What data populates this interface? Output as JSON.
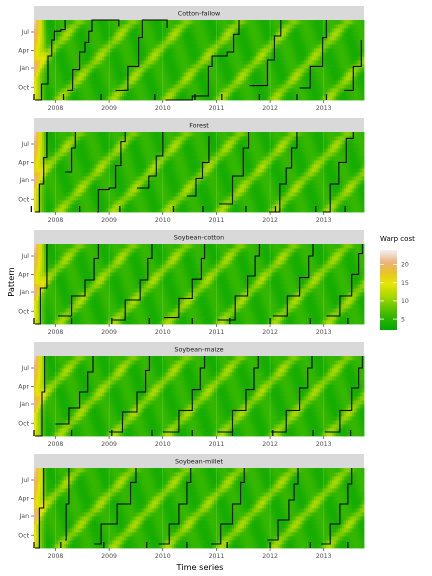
{
  "chart_data": {
    "type": "heatmap",
    "xlabel": "Time series",
    "ylabel": "Pattern",
    "x_tick_labels": [
      "2008",
      "2009",
      "2010",
      "2011",
      "2012",
      "2013"
    ],
    "y_tick_labels": [
      "Jul",
      "Apr",
      "Jan",
      "Oct"
    ],
    "legend": {
      "title": "Warp cost",
      "ticks": [
        5,
        10,
        15,
        20
      ],
      "range": [
        2,
        24
      ],
      "placement": "right",
      "colors": [
        "#00a600",
        "#63c600",
        "#e6e600",
        "#eab64e",
        "#edb48e",
        "#f2f2f2"
      ]
    },
    "panels": [
      {
        "label": "Cotton-fallow",
        "alignment_starts": [
          2007.6,
          2008.15,
          2008.85,
          2009.85,
          2010.6,
          2011.1,
          2011.8,
          2012.5,
          2013.05
        ],
        "alignment_path": [
          [
            2007.62,
            0.0
          ],
          [
            2007.74,
            0.2
          ],
          [
            2007.86,
            0.55
          ],
          [
            2007.93,
            0.75
          ],
          [
            2007.98,
            0.86
          ],
          [
            2008.1,
            0.88
          ],
          [
            2008.18,
            1.0
          ],
          [
            2008.22,
            0.12
          ],
          [
            2008.32,
            0.38
          ],
          [
            2008.45,
            0.6
          ],
          [
            2008.55,
            0.72
          ],
          [
            2008.62,
            0.86
          ],
          [
            2008.68,
            1.0
          ],
          [
            2009.18,
            0.92
          ],
          [
            2009.12,
            0.12
          ],
          [
            2009.35,
            0.42
          ],
          [
            2009.55,
            0.78
          ],
          [
            2009.62,
            1.0
          ],
          [
            2010.08,
            0.9
          ],
          [
            2010.05,
            0.0
          ],
          [
            2010.55,
            0.05
          ],
          [
            2010.85,
            0.42
          ],
          [
            2010.92,
            0.55
          ],
          [
            2011.2,
            0.6
          ],
          [
            2011.32,
            0.82
          ],
          [
            2011.42,
            1.0
          ],
          [
            2011.62,
            0.18
          ],
          [
            2011.95,
            0.5
          ],
          [
            2012.08,
            0.8
          ],
          [
            2012.2,
            1.0
          ],
          [
            2012.55,
            0.15
          ],
          [
            2012.75,
            0.42
          ],
          [
            2012.98,
            0.78
          ],
          [
            2013.05,
            1.0
          ],
          [
            2013.38,
            0.12
          ],
          [
            2013.55,
            0.42
          ],
          [
            2013.7,
            0.75
          ]
        ]
      },
      {
        "label": "Forest",
        "alignment_starts": [
          2007.55,
          2008.45,
          2009.2,
          2010.2,
          2010.75,
          2011.55,
          2012.1,
          2012.85,
          2013.4
        ],
        "alignment_path": [
          [
            2007.62,
            0.0
          ],
          [
            2007.7,
            0.35
          ],
          [
            2007.78,
            0.68
          ],
          [
            2007.84,
            1.0
          ],
          [
            2008.18,
            0.5
          ],
          [
            2008.3,
            0.8
          ],
          [
            2008.37,
            1.0
          ],
          [
            2008.78,
            0.0
          ],
          [
            2008.8,
            0.28
          ],
          [
            2009.0,
            0.3
          ],
          [
            2009.12,
            0.58
          ],
          [
            2009.22,
            0.88
          ],
          [
            2009.3,
            1.0
          ],
          [
            2009.52,
            0.3
          ],
          [
            2009.74,
            0.45
          ],
          [
            2009.88,
            0.7
          ],
          [
            2010.0,
            1.0
          ],
          [
            2010.45,
            0.2
          ],
          [
            2010.62,
            0.42
          ],
          [
            2010.74,
            0.62
          ],
          [
            2010.86,
            0.95
          ],
          [
            2011.05,
            0.1
          ],
          [
            2011.3,
            0.45
          ],
          [
            2011.5,
            0.8
          ],
          [
            2011.6,
            1.0
          ],
          [
            2011.98,
            0.0
          ],
          [
            2012.18,
            0.35
          ],
          [
            2012.3,
            0.55
          ],
          [
            2012.4,
            0.8
          ],
          [
            2012.5,
            1.0
          ],
          [
            2012.98,
            0.0
          ],
          [
            2013.12,
            0.35
          ],
          [
            2013.28,
            0.62
          ],
          [
            2013.42,
            0.92
          ],
          [
            2013.55,
            1.0
          ]
        ]
      },
      {
        "label": "Soybean-cotton",
        "alignment_starts": [
          2007.6,
          2008.3,
          2009.05,
          2009.75,
          2010.55,
          2011.25,
          2012.0,
          2012.75,
          2013.45
        ],
        "alignment_path": [
          [
            2007.62,
            0.0
          ],
          [
            2007.72,
            0.45
          ],
          [
            2007.84,
            1.0
          ],
          [
            2008.05,
            0.1
          ],
          [
            2008.3,
            0.35
          ],
          [
            2008.55,
            0.55
          ],
          [
            2008.72,
            0.82
          ],
          [
            2008.8,
            1.0
          ],
          [
            2009.05,
            0.05
          ],
          [
            2009.3,
            0.3
          ],
          [
            2009.58,
            0.55
          ],
          [
            2009.72,
            0.82
          ],
          [
            2009.8,
            1.0
          ],
          [
            2010.02,
            0.08
          ],
          [
            2010.3,
            0.32
          ],
          [
            2010.55,
            0.56
          ],
          [
            2010.72,
            0.82
          ],
          [
            2010.78,
            1.0
          ],
          [
            2011.02,
            0.05
          ],
          [
            2011.35,
            0.35
          ],
          [
            2011.58,
            0.6
          ],
          [
            2011.72,
            0.85
          ],
          [
            2011.8,
            1.0
          ],
          [
            2012.05,
            0.1
          ],
          [
            2012.32,
            0.35
          ],
          [
            2012.55,
            0.58
          ],
          [
            2012.72,
            0.85
          ],
          [
            2012.8,
            1.0
          ],
          [
            2013.05,
            0.1
          ],
          [
            2013.3,
            0.35
          ],
          [
            2013.52,
            0.62
          ],
          [
            2013.65,
            0.88
          ],
          [
            2013.72,
            1.0
          ]
        ]
      },
      {
        "label": "Soybean-maize",
        "alignment_starts": [
          2007.6,
          2008.3,
          2009.05,
          2009.8,
          2010.55,
          2011.3,
          2012.05,
          2012.8,
          2013.5
        ],
        "alignment_path": [
          [
            2007.62,
            0.0
          ],
          [
            2007.75,
            0.55
          ],
          [
            2007.8,
            1.0
          ],
          [
            2008.0,
            0.15
          ],
          [
            2008.25,
            0.35
          ],
          [
            2008.45,
            0.55
          ],
          [
            2008.6,
            0.8
          ],
          [
            2008.7,
            1.0
          ],
          [
            2009.0,
            0.05
          ],
          [
            2009.25,
            0.3
          ],
          [
            2009.52,
            0.55
          ],
          [
            2009.68,
            0.82
          ],
          [
            2009.75,
            1.0
          ],
          [
            2010.0,
            0.05
          ],
          [
            2010.3,
            0.32
          ],
          [
            2010.55,
            0.58
          ],
          [
            2010.7,
            0.85
          ],
          [
            2010.78,
            1.0
          ],
          [
            2011.02,
            0.05
          ],
          [
            2011.3,
            0.32
          ],
          [
            2011.55,
            0.58
          ],
          [
            2011.7,
            0.85
          ],
          [
            2011.78,
            1.0
          ],
          [
            2012.02,
            0.05
          ],
          [
            2012.3,
            0.32
          ],
          [
            2012.55,
            0.6
          ],
          [
            2012.7,
            0.85
          ],
          [
            2012.78,
            1.0
          ],
          [
            2013.02,
            0.05
          ],
          [
            2013.3,
            0.32
          ],
          [
            2013.52,
            0.6
          ],
          [
            2013.65,
            0.85
          ],
          [
            2013.72,
            1.0
          ]
        ]
      },
      {
        "label": "Soybean-millet",
        "alignment_starts": [
          2007.6,
          2008.1,
          2008.9,
          2009.7,
          2010.45,
          2011.2,
          2012.0,
          2012.75,
          2013.45
        ],
        "alignment_path": [
          [
            2007.62,
            0.0
          ],
          [
            2007.7,
            0.5
          ],
          [
            2007.78,
            1.0
          ],
          [
            2008.18,
            0.1
          ],
          [
            2008.2,
            0.55
          ],
          [
            2008.25,
            1.0
          ],
          [
            2008.72,
            0.05
          ],
          [
            2008.85,
            0.3
          ],
          [
            2009.15,
            0.55
          ],
          [
            2009.4,
            0.82
          ],
          [
            2009.5,
            1.0
          ],
          [
            2009.92,
            0.05
          ],
          [
            2010.12,
            0.3
          ],
          [
            2010.3,
            0.55
          ],
          [
            2010.45,
            0.82
          ],
          [
            2010.52,
            1.0
          ],
          [
            2010.9,
            0.05
          ],
          [
            2011.08,
            0.3
          ],
          [
            2011.3,
            0.55
          ],
          [
            2011.45,
            0.82
          ],
          [
            2011.52,
            1.0
          ],
          [
            2011.95,
            0.1
          ],
          [
            2012.15,
            0.35
          ],
          [
            2012.35,
            0.6
          ],
          [
            2012.45,
            0.8
          ],
          [
            2012.52,
            1.0
          ],
          [
            2012.95,
            0.05
          ],
          [
            2013.12,
            0.3
          ],
          [
            2013.3,
            0.55
          ],
          [
            2013.45,
            0.8
          ],
          [
            2013.52,
            1.0
          ]
        ]
      }
    ],
    "x_range": [
      2007.6,
      2013.75
    ],
    "y_range": [
      0,
      1
    ]
  }
}
